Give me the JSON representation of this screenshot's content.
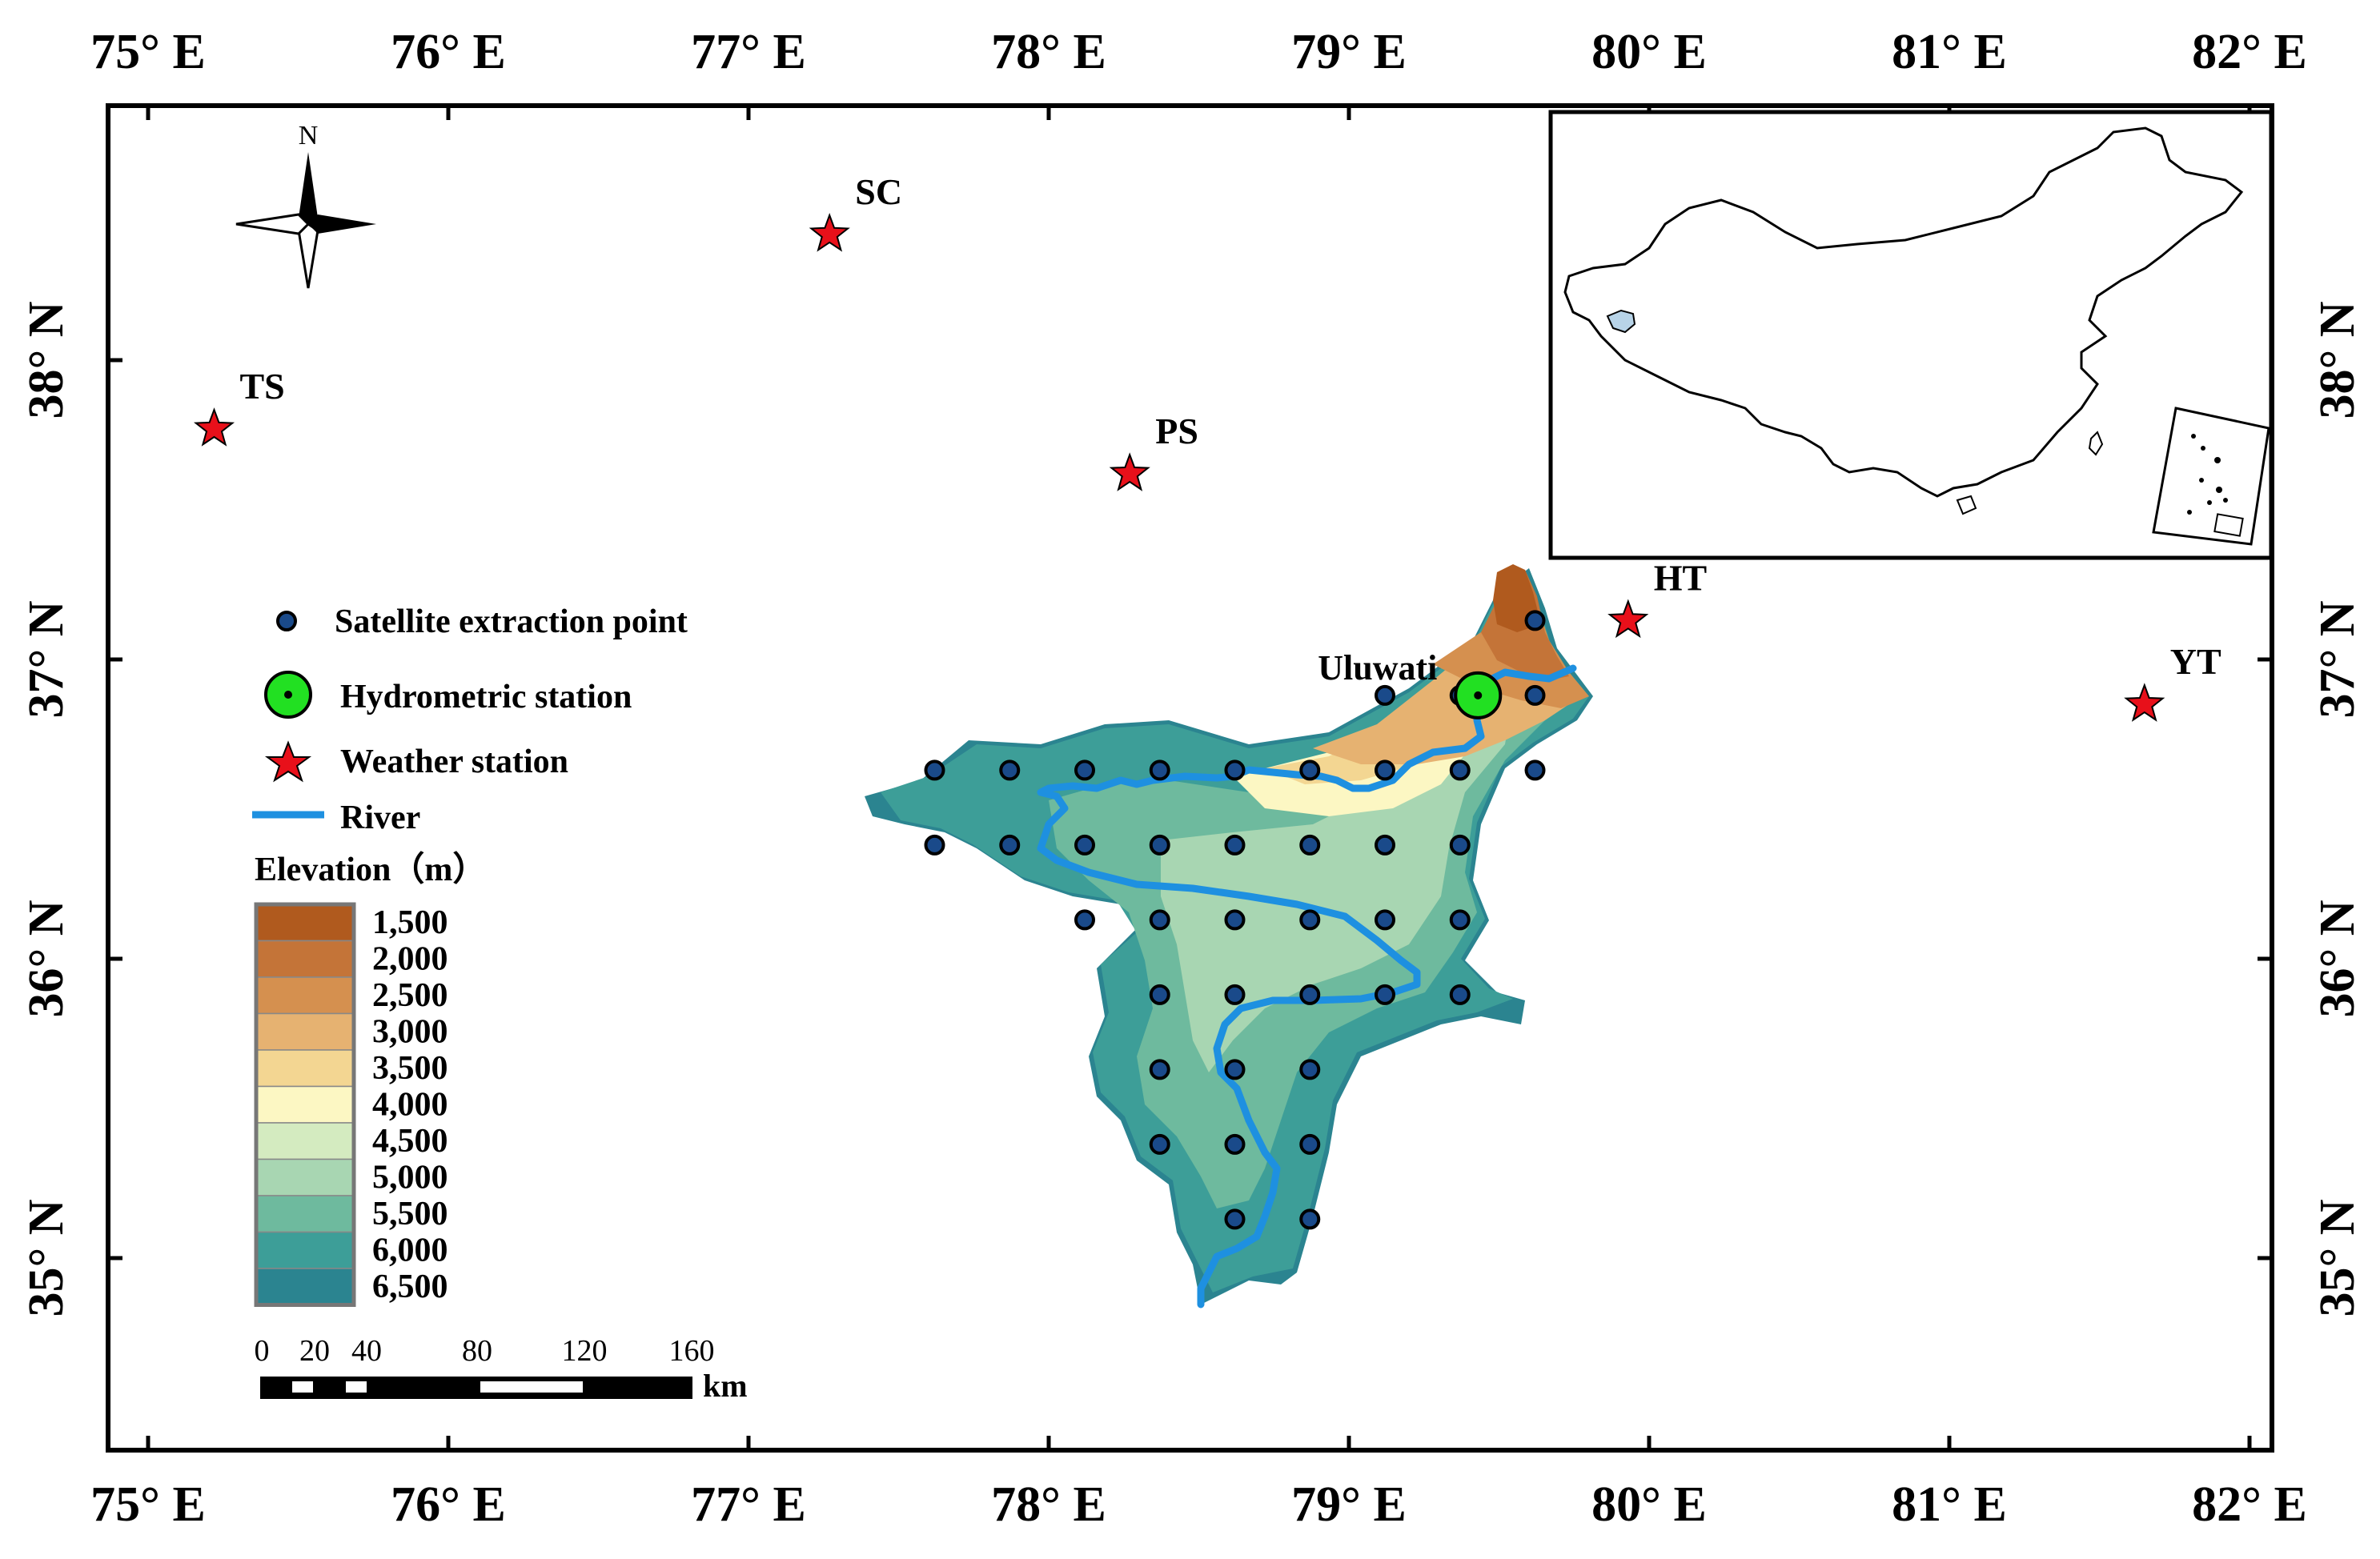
{
  "axes": {
    "lon_ticks": [
      "75° E",
      "76° E",
      "77° E",
      "78° E",
      "79° E",
      "80° E",
      "81° E",
      "82° E"
    ],
    "lat_ticks": [
      "38° N",
      "37° N",
      "36° N",
      "35° N"
    ]
  },
  "north_arrow": {
    "label": "N"
  },
  "weather_stations": [
    {
      "code": "TS",
      "lon": 75.22,
      "lat": 37.77
    },
    {
      "code": "SC",
      "lon": 77.27,
      "lat": 38.42
    },
    {
      "code": "PS",
      "lon": 78.27,
      "lat": 37.62
    },
    {
      "code": "HT",
      "lon": 79.93,
      "lat": 37.13
    },
    {
      "code": "YT",
      "lon": 81.65,
      "lat": 36.85
    }
  ],
  "hydrometric_station": {
    "name": "Uluwati",
    "lon": 79.43,
    "lat": 36.88
  },
  "satellite_points": [
    [
      79.62,
      37.13
    ],
    [
      79.12,
      36.88
    ],
    [
      79.37,
      36.88
    ],
    [
      79.62,
      36.88
    ],
    [
      77.62,
      36.63
    ],
    [
      77.87,
      36.63
    ],
    [
      78.12,
      36.63
    ],
    [
      78.37,
      36.63
    ],
    [
      78.62,
      36.63
    ],
    [
      78.87,
      36.63
    ],
    [
      79.12,
      36.63
    ],
    [
      79.37,
      36.63
    ],
    [
      79.62,
      36.63
    ],
    [
      77.62,
      36.38
    ],
    [
      77.87,
      36.38
    ],
    [
      78.12,
      36.38
    ],
    [
      78.37,
      36.38
    ],
    [
      78.62,
      36.38
    ],
    [
      78.87,
      36.38
    ],
    [
      79.12,
      36.38
    ],
    [
      79.37,
      36.38
    ],
    [
      78.12,
      36.13
    ],
    [
      78.37,
      36.13
    ],
    [
      78.62,
      36.13
    ],
    [
      78.87,
      36.13
    ],
    [
      79.12,
      36.13
    ],
    [
      79.37,
      36.13
    ],
    [
      78.37,
      35.88
    ],
    [
      78.62,
      35.88
    ],
    [
      78.87,
      35.88
    ],
    [
      79.12,
      35.88
    ],
    [
      79.37,
      35.88
    ],
    [
      78.37,
      35.63
    ],
    [
      78.62,
      35.63
    ],
    [
      78.87,
      35.63
    ],
    [
      78.37,
      35.38
    ],
    [
      78.62,
      35.38
    ],
    [
      78.87,
      35.38
    ],
    [
      78.62,
      35.13
    ],
    [
      78.87,
      35.13
    ]
  ],
  "legend": {
    "satellite": "Satellite extraction point",
    "hydrometric": "Hydrometric station",
    "weather": "Weather station",
    "river": "River",
    "elevation_title": "Elevation（m）",
    "elevation_classes": [
      "1,500",
      "2,000",
      "2,500",
      "3,000",
      "3,500",
      "4,000",
      "4,500",
      "5,000",
      "5,500",
      "6,000",
      "6,500"
    ],
    "elevation_colors": [
      "#b05a1e",
      "#c47438",
      "#d5904f",
      "#e6b271",
      "#f3d692",
      "#fcf7c3",
      "#d4ebc0",
      "#a8d6b2",
      "#6eba9e",
      "#3d9e98",
      "#2b8490"
    ]
  },
  "scale_bar": {
    "ticks": [
      "0",
      "20",
      "40",
      "80",
      "120",
      "160"
    ],
    "unit": "km"
  },
  "colors": {
    "river": "#1e90e0",
    "weather_star": "#e8101a",
    "hydro_fill": "#22e022",
    "point_fill": "#1a4a8a"
  }
}
